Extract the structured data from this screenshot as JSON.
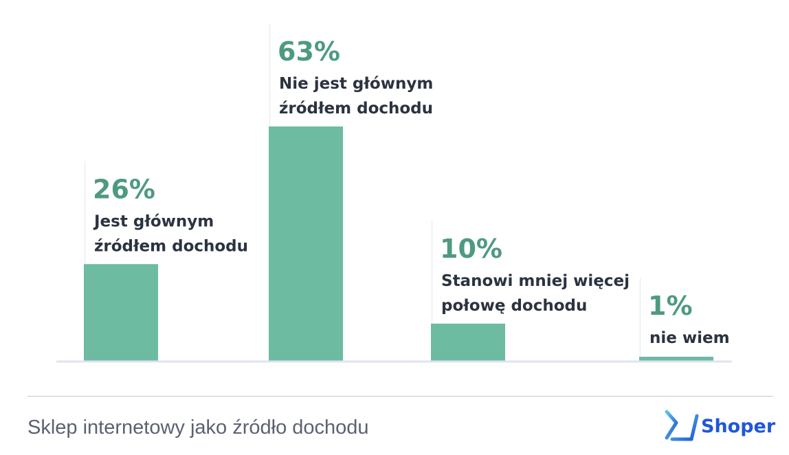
{
  "chart_data": {
    "type": "bar",
    "categories": [
      "Jest głównym źródłem dochodu",
      "Nie jest głównym źródłem dochodu",
      "Stanowi mniej więcej połowę dochodu",
      "nie wiem"
    ],
    "values": [
      26,
      63,
      10,
      1
    ],
    "value_labels": [
      "26%",
      "63%",
      "10%",
      "1%"
    ],
    "label_lines": [
      [
        "Jest głównym",
        "źródłem dochodu"
      ],
      [
        "Nie jest głównym",
        "źródłem dochodu"
      ],
      [
        "Stanowi mniej więcej",
        "połowę dochodu"
      ],
      [
        "nie wiem"
      ]
    ],
    "unit": "%",
    "ylim": [
      0,
      63
    ],
    "grid": false,
    "legend": "none",
    "bar_color": "#6dbba1",
    "value_label_color": "#4e9a80",
    "title": "",
    "xlabel": "",
    "ylabel": ""
  },
  "footer": {
    "caption": "Sklep internetowy jako źródło dochodu",
    "brand": "Shoper",
    "brand_color": "#1f57d6"
  }
}
